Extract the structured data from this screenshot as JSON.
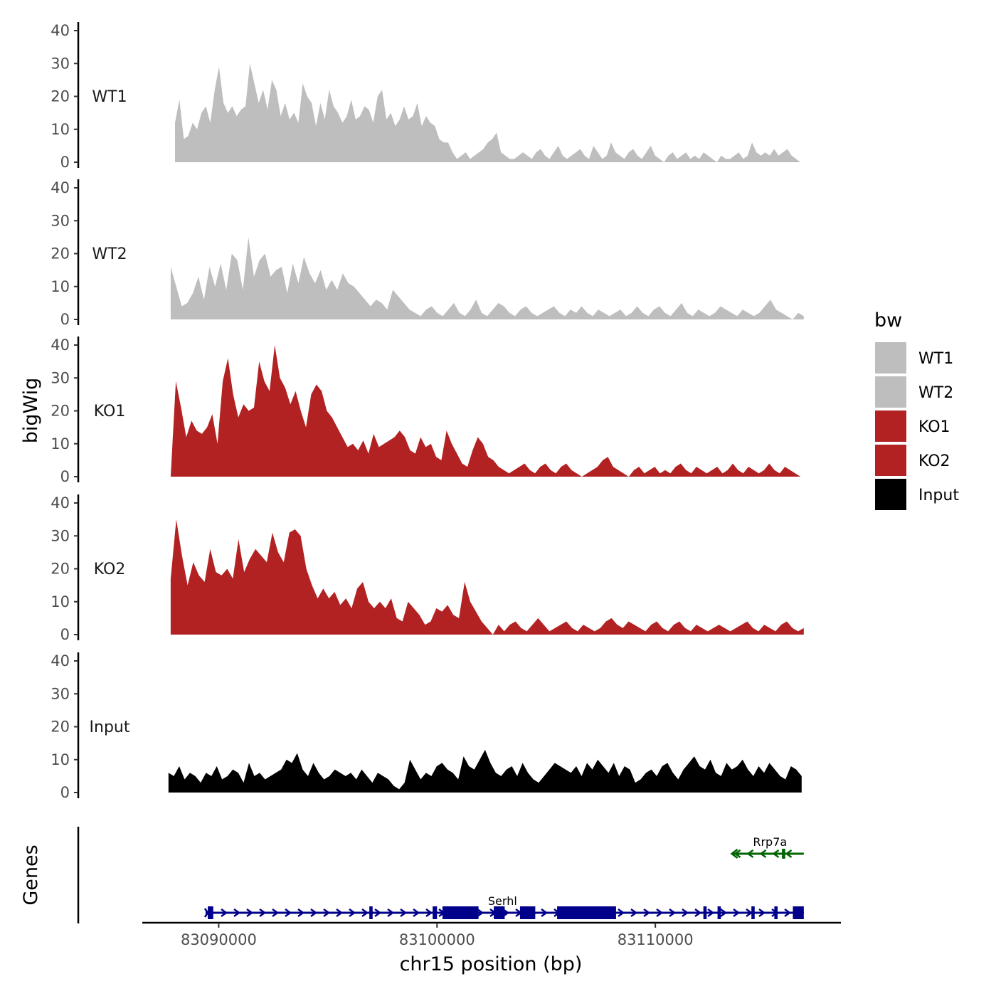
{
  "chart_data": {
    "type": "area",
    "ylabel": "bigWig",
    "xlabel": "chr15 position (bp)",
    "genes_label": "Genes",
    "x_range": [
      83086500,
      83118500
    ],
    "ylim": [
      0,
      40
    ],
    "yticks": [
      0,
      10,
      20,
      30,
      40
    ],
    "xticks": [
      83090000,
      83100000,
      83110000
    ],
    "xtick_labels": [
      "83090000",
      "83100000",
      "83110000"
    ],
    "legend": {
      "title": "bw",
      "position": "right",
      "entries": [
        {
          "label": "WT1",
          "color": "#bebebe"
        },
        {
          "label": "WT2",
          "color": "#bebebe"
        },
        {
          "label": "KO1",
          "color": "#b22222"
        },
        {
          "label": "KO2",
          "color": "#b22222"
        },
        {
          "label": "Input",
          "color": "#000000"
        }
      ]
    },
    "tracks": [
      {
        "name": "WT1",
        "color": "#bebebe",
        "x_start": 83088000,
        "x_end": 83116650,
        "values": [
          12,
          19,
          7,
          8,
          12,
          10,
          15,
          17,
          12,
          22,
          29,
          18,
          15,
          17,
          14,
          16,
          17,
          30,
          24,
          18,
          22,
          16,
          25,
          22,
          14,
          18,
          13,
          15,
          12,
          24,
          20,
          18,
          11,
          18,
          13,
          22,
          17,
          15,
          12,
          14,
          19,
          13,
          14,
          17,
          16,
          12,
          20,
          22,
          13,
          15,
          11,
          13,
          17,
          13,
          14,
          18,
          11,
          14,
          12,
          11,
          7,
          6,
          6,
          3,
          1,
          2,
          3,
          1,
          2,
          3,
          4,
          6,
          7,
          9,
          3,
          2,
          1,
          1,
          2,
          3,
          2,
          1,
          3,
          4,
          2,
          1,
          3,
          5,
          2,
          1,
          2,
          3,
          4,
          2,
          1,
          5,
          3,
          1,
          2,
          6,
          3,
          2,
          1,
          3,
          4,
          2,
          1,
          3,
          5,
          2,
          1,
          0,
          2,
          3,
          1,
          2,
          3,
          1,
          2,
          1,
          3,
          2,
          1,
          0,
          2,
          1,
          1,
          2,
          3,
          1,
          2,
          6,
          3,
          2,
          3,
          2,
          4,
          2,
          3,
          4,
          2,
          1,
          0
        ]
      },
      {
        "name": "WT2",
        "color": "#bebebe",
        "x_start": 83087800,
        "x_end": 83116800,
        "values": [
          16,
          10,
          4,
          5,
          8,
          13,
          6,
          16,
          10,
          17,
          9,
          20,
          18,
          9,
          25,
          13,
          18,
          20,
          13,
          15,
          16,
          8,
          17,
          11,
          19,
          14,
          11,
          15,
          9,
          12,
          9,
          14,
          11,
          10,
          8,
          6,
          4,
          6,
          5,
          3,
          9,
          7,
          5,
          3,
          2,
          1,
          3,
          4,
          2,
          1,
          3,
          5,
          2,
          1,
          3,
          6,
          2,
          1,
          3,
          5,
          4,
          2,
          1,
          3,
          4,
          2,
          1,
          2,
          3,
          4,
          2,
          1,
          3,
          2,
          4,
          2,
          1,
          3,
          2,
          1,
          2,
          3,
          1,
          2,
          4,
          2,
          1,
          3,
          4,
          2,
          1,
          3,
          5,
          2,
          1,
          3,
          2,
          1,
          2,
          4,
          3,
          2,
          1,
          3,
          2,
          1,
          2,
          4,
          6,
          3,
          2,
          1,
          0,
          2,
          1
        ]
      },
      {
        "name": "KO1",
        "color": "#b22222",
        "x_start": 83087800,
        "x_end": 83116650,
        "values": [
          0,
          29,
          21,
          12,
          17,
          14,
          13,
          15,
          19,
          10,
          29,
          36,
          25,
          18,
          22,
          20,
          21,
          35,
          29,
          26,
          40,
          30,
          27,
          22,
          26,
          20,
          15,
          25,
          28,
          26,
          20,
          18,
          15,
          12,
          9,
          10,
          8,
          11,
          7,
          13,
          9,
          10,
          11,
          12,
          14,
          12,
          8,
          7,
          12,
          9,
          10,
          6,
          5,
          14,
          10,
          7,
          4,
          3,
          8,
          12,
          10,
          6,
          5,
          3,
          2,
          1,
          2,
          3,
          4,
          2,
          1,
          3,
          4,
          2,
          1,
          3,
          4,
          2,
          1,
          0,
          1,
          2,
          3,
          5,
          6,
          3,
          2,
          1,
          0,
          2,
          3,
          1,
          2,
          3,
          1,
          2,
          1,
          3,
          4,
          2,
          1,
          3,
          2,
          1,
          2,
          3,
          1,
          2,
          4,
          2,
          1,
          3,
          2,
          1,
          2,
          4,
          2,
          1,
          3,
          2,
          1,
          0
        ]
      },
      {
        "name": "KO2",
        "color": "#b22222",
        "x_start": 83087800,
        "x_end": 83116800,
        "values": [
          17,
          35,
          24,
          15,
          22,
          18,
          16,
          26,
          19,
          18,
          20,
          17,
          29,
          19,
          23,
          26,
          24,
          22,
          31,
          25,
          22,
          31,
          32,
          30,
          20,
          15,
          11,
          14,
          11,
          13,
          9,
          11,
          8,
          14,
          16,
          10,
          8,
          10,
          8,
          11,
          5,
          4,
          10,
          8,
          6,
          3,
          4,
          8,
          7,
          9,
          6,
          5,
          16,
          10,
          7,
          4,
          2,
          0,
          3,
          1,
          3,
          4,
          2,
          1,
          3,
          5,
          3,
          1,
          2,
          3,
          4,
          2,
          1,
          3,
          2,
          1,
          2,
          4,
          5,
          3,
          2,
          4,
          3,
          2,
          1,
          3,
          4,
          2,
          1,
          3,
          4,
          2,
          1,
          3,
          2,
          1,
          2,
          3,
          2,
          1,
          2,
          3,
          4,
          2,
          1,
          3,
          2,
          1,
          3,
          4,
          2,
          1,
          2
        ]
      },
      {
        "name": "Input",
        "color": "#000000",
        "x_start": 83087700,
        "x_end": 83116700,
        "values": [
          6,
          5,
          8,
          4,
          6,
          5,
          3,
          6,
          5,
          8,
          4,
          5,
          7,
          6,
          3,
          9,
          5,
          6,
          4,
          5,
          6,
          7,
          10,
          9,
          12,
          7,
          5,
          9,
          6,
          4,
          5,
          7,
          6,
          5,
          6,
          4,
          7,
          5,
          3,
          6,
          5,
          4,
          2,
          1,
          3,
          10,
          7,
          4,
          6,
          5,
          8,
          9,
          7,
          6,
          4,
          11,
          8,
          7,
          10,
          13,
          9,
          6,
          5,
          7,
          8,
          5,
          9,
          6,
          4,
          3,
          5,
          7,
          9,
          8,
          7,
          6,
          8,
          5,
          9,
          7,
          10,
          8,
          6,
          9,
          5,
          8,
          7,
          3,
          4,
          6,
          7,
          5,
          8,
          9,
          6,
          4,
          7,
          9,
          11,
          8,
          7,
          10,
          6,
          5,
          9,
          7,
          8,
          10,
          7,
          5,
          8,
          6,
          9,
          7,
          5,
          4,
          8,
          7,
          5
        ]
      }
    ],
    "genes": [
      {
        "name": "Serhl",
        "color": "#00008b",
        "strand": "+",
        "row": "lower",
        "start": 83089400,
        "end": 83116800,
        "label_pos": 83103000,
        "exons": [
          [
            83089500,
            83089750
          ],
          [
            83096900,
            83097050
          ],
          [
            83099800,
            83100000
          ],
          [
            83100250,
            83101900
          ],
          [
            83102600,
            83103100
          ],
          [
            83103800,
            83104500
          ],
          [
            83105500,
            83108200
          ],
          [
            83112200,
            83112350
          ],
          [
            83112850,
            83113000
          ],
          [
            83114400,
            83114550
          ],
          [
            83115450,
            83115600
          ],
          [
            83116300,
            83116800
          ]
        ]
      },
      {
        "name": "Rrp7a",
        "color": "#006400",
        "strand": "-",
        "row": "upper",
        "start": 83113500,
        "end": 83116800,
        "label_pos": 83115250,
        "exons": [
          [
            83115800,
            83115950
          ]
        ]
      }
    ]
  }
}
